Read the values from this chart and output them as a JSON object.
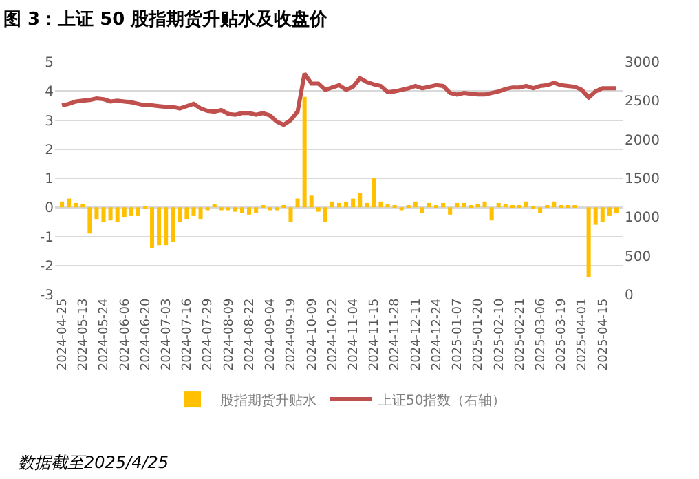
{
  "chart_data": {
    "type": "bar",
    "title": "图 3：上证 50 股指期货升贴水及收盘价",
    "categories": [
      "2024-04-25",
      null,
      null,
      "2024-05-13",
      null,
      null,
      "2024-05-24",
      null,
      null,
      "2024-06-06",
      null,
      null,
      "2024-06-20",
      null,
      null,
      "2024-07-03",
      null,
      null,
      "2024-07-16",
      null,
      null,
      "2024-07-29",
      null,
      null,
      "2024-08-09",
      null,
      null,
      "2024-08-22",
      null,
      null,
      "2024-09-04",
      null,
      null,
      "2024-09-19",
      null,
      null,
      "2024-10-09",
      null,
      null,
      "2024-10-22",
      null,
      null,
      "2024-11-04",
      null,
      null,
      "2024-11-15",
      null,
      null,
      "2024-11-28",
      null,
      null,
      "2024-12-11",
      null,
      null,
      "2024-12-24",
      null,
      null,
      "2025-01-07",
      null,
      null,
      "2025-01-20",
      null,
      null,
      "2025-02-10",
      null,
      null,
      "2025-02-21",
      null,
      null,
      "2025-03-06",
      null,
      null,
      "2025-03-19",
      null,
      null,
      "2025-04-01",
      null,
      null,
      "2025-04-15",
      null,
      null
    ],
    "series": [
      {
        "name": "股指期货升贴水",
        "color": "#ffc000",
        "values": [
          0.2,
          0.3,
          0.15,
          0.1,
          -0.9,
          -0.4,
          -0.5,
          -0.45,
          -0.5,
          -0.35,
          -0.3,
          -0.3,
          -0.05,
          -1.4,
          -1.3,
          -1.3,
          -1.2,
          -0.5,
          -0.4,
          -0.3,
          -0.4,
          -0.1,
          0.1,
          -0.1,
          -0.1,
          -0.15,
          -0.2,
          -0.25,
          -0.2,
          0.05,
          -0.1,
          -0.1,
          0.05,
          -0.5,
          0.3,
          3.8,
          0.4,
          -0.15,
          -0.5,
          0.2,
          0.15,
          0.2,
          0.3,
          0.5,
          0.15,
          1.0,
          0.2,
          0.1,
          0.05,
          -0.1,
          0.05,
          0.2,
          -0.2,
          0.15,
          0.05,
          0.15,
          -0.25,
          0.15,
          0.15,
          0.05,
          0.1,
          0.2,
          -0.45,
          0.15,
          0.1,
          0.05,
          0.05,
          0.2,
          -0.05,
          -0.2,
          0.05,
          0.2,
          0.05,
          0.05,
          0.05,
          0.0,
          -2.4,
          -0.6,
          -0.5,
          -0.3,
          -0.2
        ]
      },
      {
        "name": "上证50指数（右轴）",
        "type": "line",
        "axis": "y2",
        "color": "#c0504d",
        "values": [
          2440,
          2460,
          2490,
          2500,
          2510,
          2530,
          2520,
          2490,
          2500,
          2490,
          2480,
          2460,
          2440,
          2440,
          2430,
          2420,
          2420,
          2400,
          2430,
          2460,
          2400,
          2370,
          2360,
          2380,
          2330,
          2320,
          2340,
          2340,
          2320,
          2340,
          2310,
          2230,
          2190,
          2250,
          2360,
          2850,
          2720,
          2720,
          2640,
          2670,
          2700,
          2640,
          2680,
          2790,
          2740,
          2710,
          2690,
          2610,
          2620,
          2640,
          2660,
          2690,
          2660,
          2680,
          2700,
          2690,
          2600,
          2580,
          2600,
          2590,
          2580,
          2580,
          2600,
          2620,
          2650,
          2670,
          2670,
          2690,
          2660,
          2690,
          2700,
          2730,
          2700,
          2690,
          2680,
          2640,
          2540,
          2620,
          2660,
          2660,
          2660
        ]
      }
    ],
    "ylim": [
      -3,
      5
    ],
    "yticks": [
      -3,
      -2,
      -1,
      0,
      1,
      2,
      3,
      4,
      5
    ],
    "y2lim": [
      0,
      3000
    ],
    "y2ticks": [
      0,
      500,
      1000,
      1500,
      2000,
      2500,
      3000
    ],
    "grid": "y",
    "legend": "bottom",
    "line_style": "solid",
    "marker": "none",
    "annotations": [
      "数据截至2025/4/25"
    ]
  }
}
